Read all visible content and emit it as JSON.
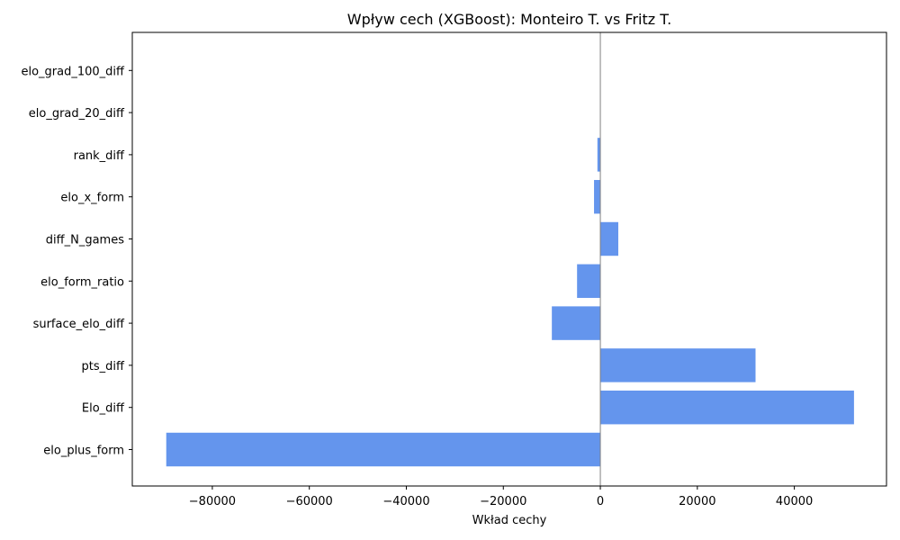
{
  "chart_data": {
    "type": "bar",
    "orientation": "horizontal",
    "title": "Wpływ cech (XGBoost): Monteiro T. vs Fritz T.",
    "xlabel": "Wkład cechy",
    "ylabel": "",
    "categories": [
      "elo_plus_form",
      "Elo_diff",
      "pts_diff",
      "surface_elo_diff",
      "elo_form_ratio",
      "diff_N_games",
      "elo_x_form",
      "rank_diff",
      "elo_grad_20_diff",
      "elo_grad_100_diff"
    ],
    "values": [
      -89500,
      52300,
      32000,
      -10000,
      -4800,
      3700,
      -1300,
      -600,
      0,
      0
    ],
    "xlim": [
      -96500,
      59000
    ],
    "xticks": [
      -80000,
      -60000,
      -40000,
      -20000,
      0,
      20000,
      40000
    ],
    "xtick_labels": [
      "−80000",
      "−60000",
      "−40000",
      "−20000",
      "0",
      "20000",
      "40000"
    ],
    "bar_color": "#6495ed",
    "zero_line_color": "#808080",
    "grid": false,
    "legend": "none"
  }
}
